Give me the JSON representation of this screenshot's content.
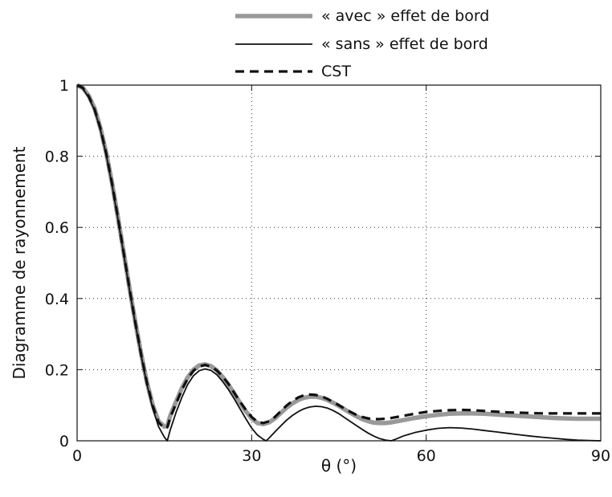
{
  "chart_data": {
    "type": "line",
    "title": "",
    "xlabel": "θ (°)",
    "ylabel": "Diagramme de rayonnement",
    "xlim": [
      0,
      90
    ],
    "ylim": [
      0,
      1
    ],
    "xticks": [
      0,
      30,
      60,
      90
    ],
    "yticks": [
      0,
      0.2,
      0.4,
      0.6,
      0.8,
      1
    ],
    "xtick_labels": [
      "0",
      "30",
      "60",
      "90"
    ],
    "ytick_labels": [
      "0",
      "0.2",
      "0.4",
      "0.6",
      "0.8",
      "1"
    ],
    "grid": true,
    "legend_position": "top-right, above plot",
    "series": [
      {
        "name": "« avec » effet de bord",
        "style": "thick-solid",
        "color": "#999999",
        "x": [
          0,
          1,
          2,
          3,
          4,
          5,
          6,
          7,
          8,
          9,
          10,
          11,
          12,
          13,
          14,
          15,
          15.5,
          16,
          17,
          18,
          19,
          20,
          21,
          22,
          23,
          24,
          25,
          26,
          27,
          28,
          29,
          30,
          31,
          32,
          33,
          34,
          35,
          36,
          37,
          38,
          39,
          40,
          41,
          42,
          43,
          44,
          45,
          46,
          47,
          48,
          49,
          50,
          51,
          52,
          53,
          54,
          56,
          58,
          60,
          62,
          64,
          66,
          68,
          70,
          72,
          74,
          76,
          78,
          80,
          82,
          84,
          86,
          88,
          90
        ],
        "y": [
          1.0,
          0.992,
          0.97,
          0.935,
          0.88,
          0.81,
          0.725,
          0.63,
          0.53,
          0.43,
          0.335,
          0.245,
          0.165,
          0.1,
          0.055,
          0.04,
          0.042,
          0.07,
          0.11,
          0.148,
          0.178,
          0.2,
          0.212,
          0.215,
          0.21,
          0.198,
          0.18,
          0.158,
          0.133,
          0.107,
          0.083,
          0.063,
          0.05,
          0.047,
          0.052,
          0.063,
          0.078,
          0.093,
          0.105,
          0.115,
          0.121,
          0.124,
          0.124,
          0.121,
          0.115,
          0.107,
          0.098,
          0.088,
          0.078,
          0.069,
          0.061,
          0.055,
          0.051,
          0.05,
          0.05,
          0.052,
          0.058,
          0.064,
          0.069,
          0.073,
          0.076,
          0.077,
          0.077,
          0.076,
          0.074,
          0.072,
          0.07,
          0.068,
          0.066,
          0.064,
          0.063,
          0.062,
          0.062,
          0.062
        ]
      },
      {
        "name": "« sans » effet de bord",
        "style": "thin-solid",
        "color": "#111111",
        "x": [
          0,
          1,
          2,
          3,
          4,
          5,
          6,
          7,
          8,
          9,
          10,
          11,
          12,
          13,
          14,
          15,
          15.5,
          16,
          17,
          18,
          19,
          20,
          21,
          22,
          23,
          24,
          25,
          26,
          27,
          28,
          29,
          30,
          31,
          32,
          32.5,
          33,
          34,
          35,
          36,
          37,
          38,
          39,
          40,
          41,
          42,
          43,
          44,
          45,
          46,
          47,
          48,
          49,
          50,
          51,
          52,
          53,
          54,
          55,
          56,
          58,
          60,
          62,
          64,
          66,
          68,
          70,
          72,
          74,
          76,
          78,
          80,
          82,
          84,
          86,
          88,
          90
        ],
        "y": [
          1.0,
          0.99,
          0.965,
          0.93,
          0.875,
          0.805,
          0.72,
          0.625,
          0.525,
          0.425,
          0.33,
          0.24,
          0.16,
          0.09,
          0.04,
          0.01,
          0.0,
          0.03,
          0.08,
          0.122,
          0.158,
          0.183,
          0.197,
          0.202,
          0.198,
          0.186,
          0.167,
          0.144,
          0.118,
          0.09,
          0.062,
          0.036,
          0.016,
          0.004,
          0.0,
          0.008,
          0.025,
          0.042,
          0.058,
          0.071,
          0.082,
          0.09,
          0.095,
          0.097,
          0.096,
          0.092,
          0.085,
          0.076,
          0.065,
          0.054,
          0.043,
          0.032,
          0.022,
          0.013,
          0.006,
          0.002,
          0.0,
          0.006,
          0.013,
          0.023,
          0.03,
          0.035,
          0.037,
          0.036,
          0.033,
          0.029,
          0.025,
          0.021,
          0.017,
          0.013,
          0.01,
          0.007,
          0.004,
          0.002,
          0.001,
          0.0
        ]
      },
      {
        "name": "CST",
        "style": "dashed",
        "color": "#111111",
        "x": [
          0,
          1,
          2,
          3,
          4,
          5,
          6,
          7,
          8,
          9,
          10,
          11,
          12,
          13,
          14,
          15,
          15.5,
          16,
          17,
          18,
          19,
          20,
          21,
          22,
          23,
          24,
          25,
          26,
          27,
          28,
          29,
          30,
          31,
          32,
          33,
          34,
          35,
          36,
          37,
          38,
          39,
          40,
          41,
          42,
          43,
          44,
          45,
          46,
          47,
          48,
          49,
          50,
          51,
          52,
          53,
          54,
          56,
          58,
          60,
          62,
          64,
          66,
          68,
          70,
          72,
          74,
          76,
          78,
          80,
          82,
          84,
          86,
          88,
          90
        ],
        "y": [
          1.0,
          0.992,
          0.968,
          0.932,
          0.878,
          0.808,
          0.723,
          0.628,
          0.528,
          0.428,
          0.333,
          0.243,
          0.163,
          0.098,
          0.052,
          0.035,
          0.038,
          0.065,
          0.105,
          0.143,
          0.175,
          0.197,
          0.209,
          0.213,
          0.209,
          0.198,
          0.181,
          0.16,
          0.135,
          0.11,
          0.087,
          0.067,
          0.053,
          0.05,
          0.055,
          0.067,
          0.083,
          0.099,
          0.112,
          0.122,
          0.128,
          0.13,
          0.129,
          0.125,
          0.118,
          0.109,
          0.1,
          0.09,
          0.081,
          0.073,
          0.067,
          0.063,
          0.061,
          0.061,
          0.062,
          0.064,
          0.07,
          0.076,
          0.081,
          0.084,
          0.086,
          0.087,
          0.086,
          0.084,
          0.082,
          0.08,
          0.079,
          0.078,
          0.077,
          0.077,
          0.077,
          0.077,
          0.077,
          0.077
        ]
      }
    ]
  }
}
